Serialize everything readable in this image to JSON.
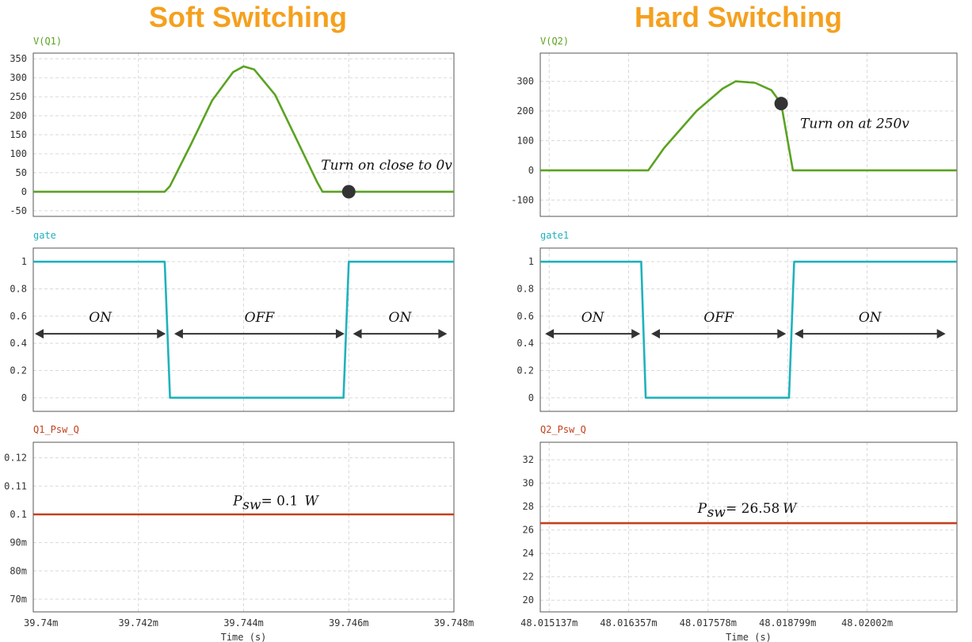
{
  "colors": {
    "voltage": "#5aa321",
    "gate": "#1fb2bd",
    "power": "#c2401c",
    "title": "#f5a01e",
    "marker": "#333333",
    "arrow": "#333333"
  },
  "panels": [
    {
      "title": "Soft Switching",
      "xlim": [
        39.74,
        39.748
      ],
      "xticks": [
        {
          "v": 39.74,
          "label": "39.74m"
        },
        {
          "v": 39.742,
          "label": "39.742m"
        },
        {
          "v": 39.744,
          "label": "39.744m"
        },
        {
          "v": 39.746,
          "label": "39.746m"
        },
        {
          "v": 39.748,
          "label": "39.748m"
        }
      ],
      "xlabel": "Time (s)",
      "chart_data": [
        {
          "type": "line",
          "name": "V(Q1)",
          "ylim": [
            -65,
            365
          ],
          "yticks": [
            {
              "v": 350,
              "label": "350"
            },
            {
              "v": 300,
              "label": "300"
            },
            {
              "v": 250,
              "label": "250"
            },
            {
              "v": 200,
              "label": "200"
            },
            {
              "v": 150,
              "label": "150"
            },
            {
              "v": 100,
              "label": "100"
            },
            {
              "v": 50,
              "label": "50"
            },
            {
              "v": 0,
              "label": "0"
            },
            {
              "v": -50,
              "label": "-50"
            }
          ],
          "x": [
            39.74,
            39.7425,
            39.7426,
            39.743,
            39.7434,
            39.7438,
            39.744,
            39.7442,
            39.7446,
            39.745,
            39.7454,
            39.7455,
            39.746,
            39.748
          ],
          "y": [
            0,
            0,
            15,
            125,
            240,
            315,
            330,
            322,
            255,
            140,
            25,
            0,
            0,
            0
          ],
          "annotation": {
            "text": "Turn on close to 0v",
            "x": 39.746,
            "y": 0
          }
        },
        {
          "type": "line",
          "name": "gate",
          "ylim": [
            -0.1,
            1.1
          ],
          "yticks": [
            {
              "v": 1,
              "label": "1"
            },
            {
              "v": 0.8,
              "label": "0.8"
            },
            {
              "v": 0.6,
              "label": "0.6"
            },
            {
              "v": 0.4,
              "label": "0.4"
            },
            {
              "v": 0.2,
              "label": "0.2"
            },
            {
              "v": 0,
              "label": "0"
            }
          ],
          "x": [
            39.74,
            39.7425,
            39.7426,
            39.7459,
            39.746,
            39.748
          ],
          "y": [
            1,
            1,
            0,
            0,
            1,
            1
          ],
          "regions": [
            {
              "label": "ON",
              "x0": 39.74,
              "x1": 39.74255
            },
            {
              "label": "OFF",
              "x0": 39.74265,
              "x1": 39.74595
            },
            {
              "label": "ON",
              "x0": 39.74605,
              "x1": 39.7479
            }
          ],
          "arrow_y": 0.47
        },
        {
          "type": "line",
          "name": "Q1_Psw_Q",
          "ylim": [
            0.0655,
            0.1255
          ],
          "yticks": [
            {
              "v": 0.12,
              "label": "0.12"
            },
            {
              "v": 0.11,
              "label": "0.11"
            },
            {
              "v": 0.1,
              "label": "0.1"
            },
            {
              "v": 0.09,
              "label": "90m"
            },
            {
              "v": 0.08,
              "label": "80m"
            },
            {
              "v": 0.07,
              "label": "70m"
            }
          ],
          "x": [
            39.74,
            39.748
          ],
          "y": [
            0.1,
            0.1
          ],
          "annotation": {
            "text": " = 0.1 ",
            "sub": "sw",
            "unit": "W",
            "x": 39.7441,
            "y": 0.1055
          }
        }
      ]
    },
    {
      "title": "Hard Switching",
      "xlim": [
        48.015,
        48.0214
      ],
      "xticks": [
        {
          "v": 48.015137,
          "label": "48.015137m"
        },
        {
          "v": 48.016357,
          "label": "48.016357m"
        },
        {
          "v": 48.017578,
          "label": "48.017578m"
        },
        {
          "v": 48.018799,
          "label": "48.018799m"
        },
        {
          "v": 48.02002,
          "label": "48.02002m"
        }
      ],
      "xlabel": "Time (s)",
      "chart_data": [
        {
          "type": "line",
          "name": "V(Q2)",
          "ylim": [
            -155,
            395
          ],
          "yticks": [
            {
              "v": 300,
              "label": "300"
            },
            {
              "v": 200,
              "label": "200"
            },
            {
              "v": 100,
              "label": "100"
            },
            {
              "v": 0,
              "label": "0"
            },
            {
              "v": -100,
              "label": "-100"
            }
          ],
          "x": [
            48.015,
            48.01666,
            48.0169,
            48.0174,
            48.0178,
            48.018,
            48.0183,
            48.01855,
            48.0187,
            48.01888,
            48.0214
          ],
          "y": [
            0,
            0,
            75,
            200,
            275,
            300,
            295,
            270,
            225,
            0,
            0
          ],
          "annotation": {
            "text": "Turn on at 250v",
            "x": 48.0187,
            "y": 225
          }
        },
        {
          "type": "line",
          "name": "gate1",
          "ylim": [
            -0.1,
            1.1
          ],
          "yticks": [
            {
              "v": 1,
              "label": "1"
            },
            {
              "v": 0.8,
              "label": "0.8"
            },
            {
              "v": 0.6,
              "label": "0.6"
            },
            {
              "v": 0.4,
              "label": "0.4"
            },
            {
              "v": 0.2,
              "label": "0.2"
            },
            {
              "v": 0,
              "label": "0"
            }
          ],
          "x": [
            48.015,
            48.01655,
            48.01662,
            48.01882,
            48.0189,
            48.0214
          ],
          "y": [
            1,
            1,
            0,
            0,
            1,
            1
          ],
          "regions": [
            {
              "label": "ON",
              "x0": 48.01505,
              "x1": 48.01656
            },
            {
              "label": "OFF",
              "x0": 48.01668,
              "x1": 48.0188
            },
            {
              "label": "ON",
              "x0": 48.01888,
              "x1": 48.02125
            }
          ],
          "arrow_y": 0.47
        },
        {
          "type": "line",
          "name": "Q2_Psw_Q",
          "ylim": [
            19,
            33.5
          ],
          "yticks": [
            {
              "v": 32,
              "label": "32"
            },
            {
              "v": 30,
              "label": "30"
            },
            {
              "v": 28,
              "label": "28"
            },
            {
              "v": 26,
              "label": "26"
            },
            {
              "v": 24,
              "label": "24"
            },
            {
              "v": 22,
              "label": "22"
            },
            {
              "v": 20,
              "label": "20"
            }
          ],
          "x": [
            48.015,
            48.0214
          ],
          "y": [
            26.58,
            26.58
          ],
          "annotation": {
            "text": " = 26.58 ",
            "sub": "sw",
            "unit": "W",
            "x": 48.01766,
            "y": 28.0
          }
        }
      ]
    }
  ]
}
